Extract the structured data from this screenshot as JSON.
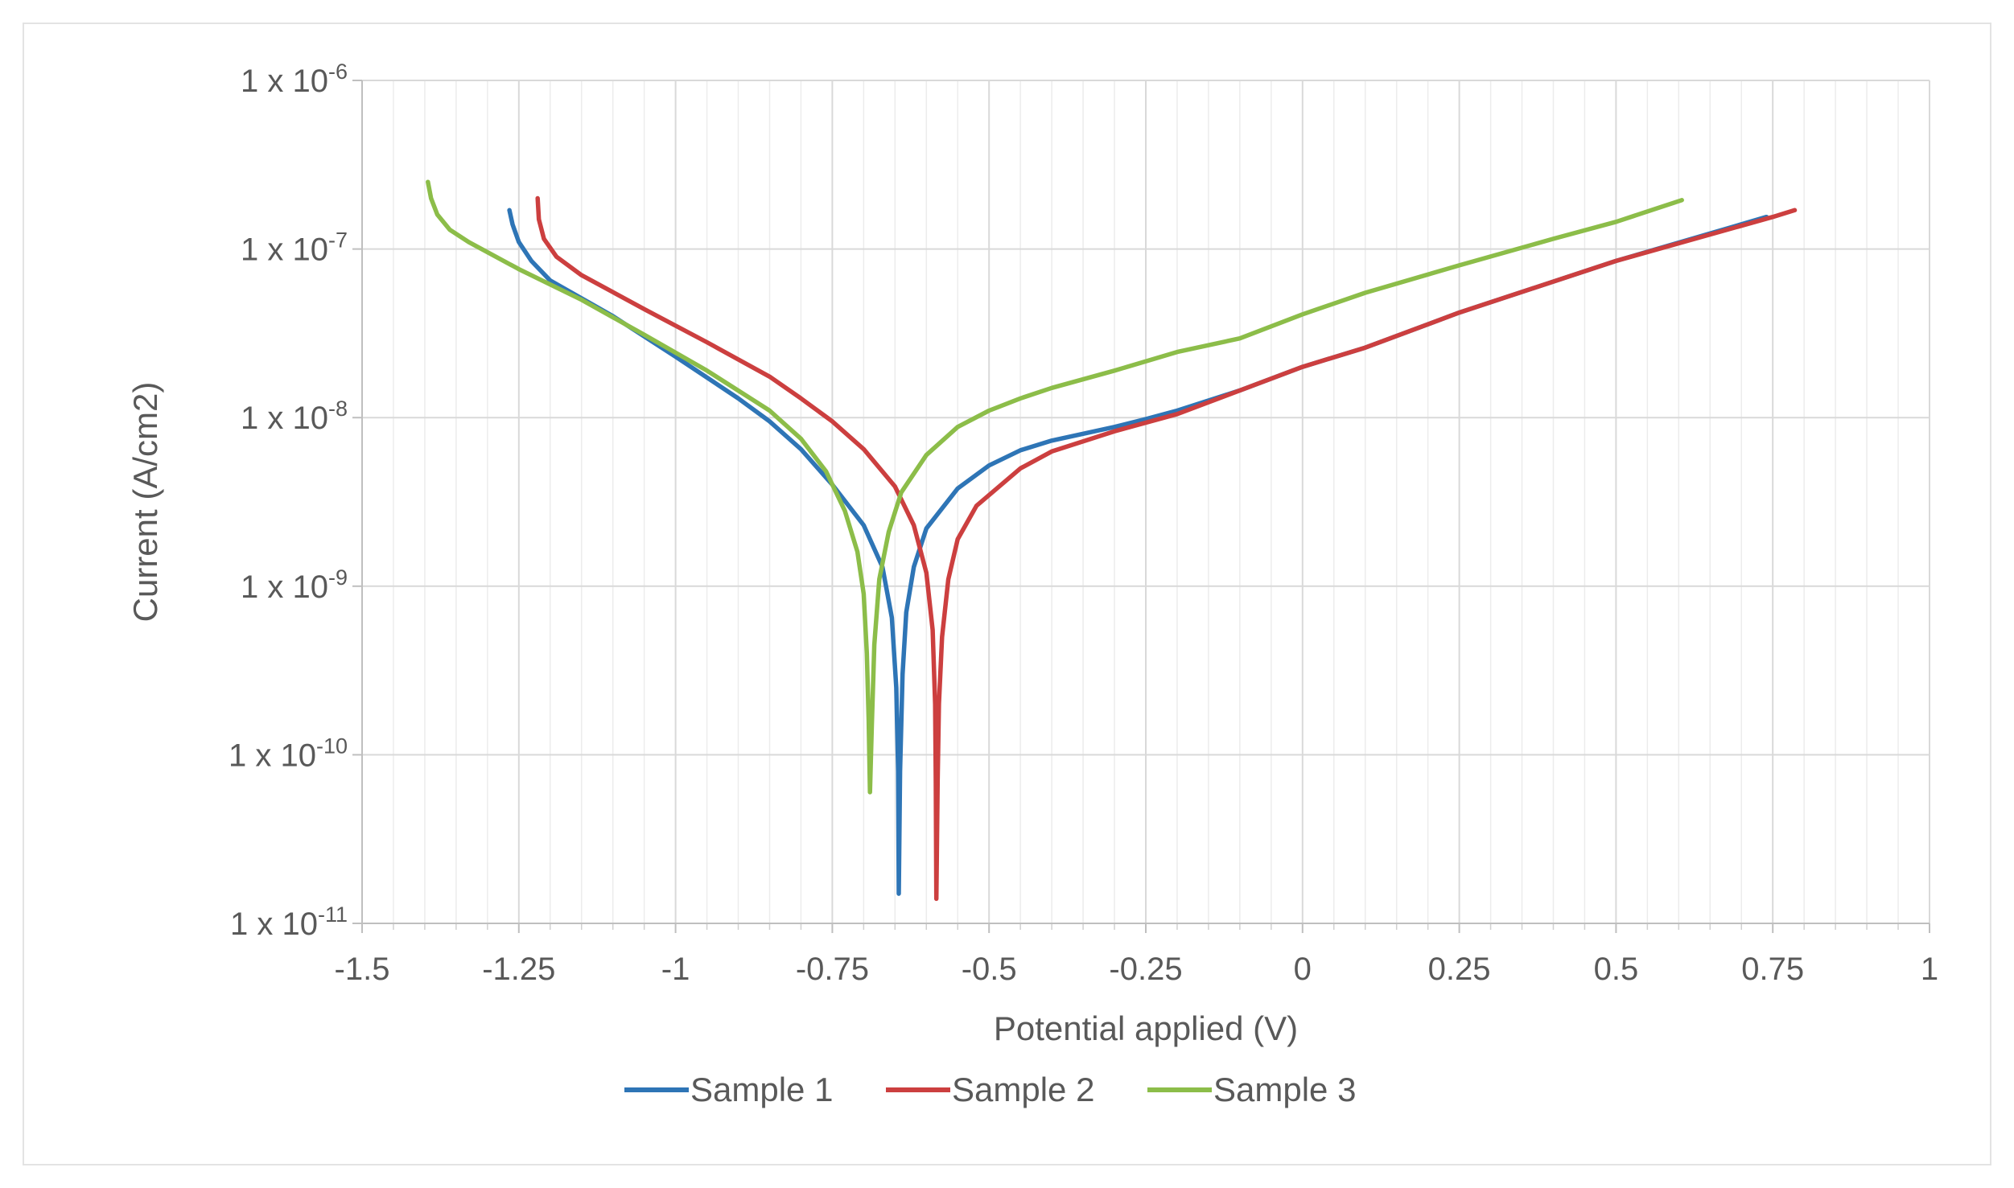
{
  "chart_data": {
    "type": "line",
    "title": "",
    "xlabel": "Potential applied (V)",
    "ylabel": "Current (A/cm2)",
    "xlim": [
      -1.5,
      1
    ],
    "ylim_log10": [
      -11,
      -6
    ],
    "y_scale": "log",
    "x_ticks": [
      "-1.5",
      "-1.25",
      "-1",
      "-0.75",
      "-0.5",
      "-0.25",
      "0",
      "0.25",
      "0.5",
      "0.75",
      "1"
    ],
    "y_ticks": [
      {
        "base": "1 x 10",
        "exp": "-6"
      },
      {
        "base": "1 x 10",
        "exp": "-7"
      },
      {
        "base": "1 x 10",
        "exp": "-8"
      },
      {
        "base": "1 x 10",
        "exp": "-9"
      },
      {
        "base": "1 x 10",
        "exp": "-10"
      },
      {
        "base": "1 x 10",
        "exp": "-11"
      }
    ],
    "grid": {
      "major_x": true,
      "minor_x": true,
      "major_y": true
    },
    "legend_position": "bottom",
    "series": [
      {
        "name": "Sample 1",
        "color": "#2e75b6",
        "points": [
          [
            -1.265,
            1.7e-07
          ],
          [
            -1.26,
            1.4e-07
          ],
          [
            -1.25,
            1.1e-07
          ],
          [
            -1.23,
            8.5e-08
          ],
          [
            -1.2,
            6.5e-08
          ],
          [
            -1.1,
            4e-08
          ],
          [
            -1.0,
            2.3e-08
          ],
          [
            -0.9,
            1.3e-08
          ],
          [
            -0.85,
            9.5e-09
          ],
          [
            -0.8,
            6.5e-09
          ],
          [
            -0.75,
            4e-09
          ],
          [
            -0.7,
            2.3e-09
          ],
          [
            -0.67,
            1.3e-09
          ],
          [
            -0.655,
            6.5e-10
          ],
          [
            -0.648,
            2.5e-10
          ],
          [
            -0.645,
            8e-11
          ],
          [
            -0.644,
            1.5e-11
          ],
          [
            -0.642,
            8e-11
          ],
          [
            -0.638,
            3e-10
          ],
          [
            -0.632,
            7e-10
          ],
          [
            -0.62,
            1.3e-09
          ],
          [
            -0.6,
            2.2e-09
          ],
          [
            -0.55,
            3.8e-09
          ],
          [
            -0.5,
            5.2e-09
          ],
          [
            -0.45,
            6.4e-09
          ],
          [
            -0.4,
            7.3e-09
          ],
          [
            -0.3,
            8.8e-09
          ],
          [
            -0.25,
            9.8e-09
          ],
          [
            -0.2,
            1.1e-08
          ],
          [
            -0.1,
            1.45e-08
          ],
          [
            0.0,
            2e-08
          ],
          [
            0.1,
            2.6e-08
          ],
          [
            0.25,
            4.2e-08
          ],
          [
            0.5,
            8.5e-08
          ],
          [
            0.74,
            1.55e-07
          ]
        ]
      },
      {
        "name": "Sample 2",
        "color": "#cc3f3f",
        "points": [
          [
            -1.22,
            2e-07
          ],
          [
            -1.218,
            1.5e-07
          ],
          [
            -1.21,
            1.15e-07
          ],
          [
            -1.19,
            9e-08
          ],
          [
            -1.15,
            7e-08
          ],
          [
            -1.05,
            4.4e-08
          ],
          [
            -0.95,
            2.8e-08
          ],
          [
            -0.85,
            1.75e-08
          ],
          [
            -0.8,
            1.3e-08
          ],
          [
            -0.75,
            9.5e-09
          ],
          [
            -0.7,
            6.5e-09
          ],
          [
            -0.65,
            3.9e-09
          ],
          [
            -0.62,
            2.3e-09
          ],
          [
            -0.6,
            1.2e-09
          ],
          [
            -0.59,
            5.5e-10
          ],
          [
            -0.586,
            2e-10
          ],
          [
            -0.585,
            7e-11
          ],
          [
            -0.584,
            1.4e-11
          ],
          [
            -0.582,
            7e-11
          ],
          [
            -0.58,
            2e-10
          ],
          [
            -0.575,
            5e-10
          ],
          [
            -0.565,
            1.1e-09
          ],
          [
            -0.55,
            1.9e-09
          ],
          [
            -0.52,
            3e-09
          ],
          [
            -0.45,
            5e-09
          ],
          [
            -0.4,
            6.3e-09
          ],
          [
            -0.3,
            8.3e-09
          ],
          [
            -0.2,
            1.05e-08
          ],
          [
            -0.1,
            1.45e-08
          ],
          [
            0.0,
            2e-08
          ],
          [
            0.1,
            2.6e-08
          ],
          [
            0.25,
            4.2e-08
          ],
          [
            0.5,
            8.5e-08
          ],
          [
            0.75,
            1.55e-07
          ],
          [
            0.785,
            1.7e-07
          ]
        ]
      },
      {
        "name": "Sample 3",
        "color": "#8cbd49",
        "points": [
          [
            -1.395,
            2.5e-07
          ],
          [
            -1.39,
            2e-07
          ],
          [
            -1.38,
            1.6e-07
          ],
          [
            -1.36,
            1.3e-07
          ],
          [
            -1.33,
            1.1e-07
          ],
          [
            -1.25,
            7.6e-08
          ],
          [
            -1.15,
            5e-08
          ],
          [
            -1.05,
            3.1e-08
          ],
          [
            -0.95,
            1.9e-08
          ],
          [
            -0.85,
            1.1e-08
          ],
          [
            -0.8,
            7.5e-09
          ],
          [
            -0.76,
            4.8e-09
          ],
          [
            -0.73,
            2.8e-09
          ],
          [
            -0.71,
            1.6e-09
          ],
          [
            -0.7,
            9e-10
          ],
          [
            -0.695,
            4e-10
          ],
          [
            -0.692,
            1.6e-10
          ],
          [
            -0.69,
            6e-11
          ],
          [
            -0.687,
            1.5e-10
          ],
          [
            -0.683,
            4.5e-10
          ],
          [
            -0.675,
            1.1e-09
          ],
          [
            -0.66,
            2.1e-09
          ],
          [
            -0.64,
            3.6e-09
          ],
          [
            -0.6,
            6e-09
          ],
          [
            -0.55,
            8.8e-09
          ],
          [
            -0.5,
            1.1e-08
          ],
          [
            -0.45,
            1.3e-08
          ],
          [
            -0.4,
            1.5e-08
          ],
          [
            -0.3,
            1.9e-08
          ],
          [
            -0.2,
            2.45e-08
          ],
          [
            -0.1,
            2.95e-08
          ],
          [
            0.0,
            4.1e-08
          ],
          [
            0.1,
            5.5e-08
          ],
          [
            0.25,
            8e-08
          ],
          [
            0.4,
            1.15e-07
          ],
          [
            0.5,
            1.45e-07
          ],
          [
            0.605,
            1.95e-07
          ]
        ]
      }
    ]
  }
}
